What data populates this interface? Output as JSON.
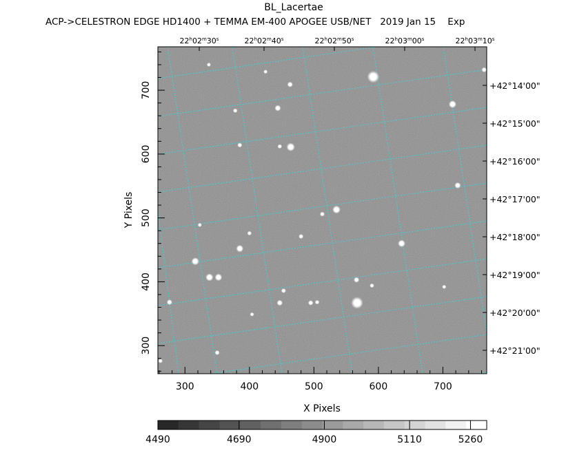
{
  "chart_data": {
    "type": "heatmap",
    "title": "BL_Lacertae",
    "subtitle": "ACP->CELESTRON EDGE HD1400 + TEMMA EM-400 APOGEE USB/NET   2019 Jan 15    Exp",
    "xlabel": "X Pixels",
    "ylabel": "Y Pixels",
    "xlim": [
      258,
      768
    ],
    "ylim": [
      256,
      768
    ],
    "x_ticks": [
      300,
      400,
      500,
      600,
      700
    ],
    "y_ticks": [
      300,
      400,
      500,
      600,
      700
    ],
    "ra_ticks": [
      {
        "h": "22",
        "m": "02",
        "s": "30"
      },
      {
        "h": "22",
        "m": "02",
        "s": "40"
      },
      {
        "h": "22",
        "m": "02",
        "s": "50"
      },
      {
        "h": "22",
        "m": "03",
        "s": "00"
      },
      {
        "h": "22",
        "m": "03",
        "s": "10"
      }
    ],
    "dec_ticks": [
      "+42°14'00\"",
      "+42°15'00\"",
      "+42°16'00\"",
      "+42°17'00\"",
      "+42°18'00\"",
      "+42°19'00\"",
      "+42°20'00\"",
      "+42°21'00\""
    ],
    "colorbar": {
      "range": [
        4490,
        5300
      ],
      "tick_labels": [
        "4490",
        "4690",
        "4900",
        "5110",
        "5260"
      ],
      "tick_values": [
        4490,
        4690,
        4900,
        5110,
        5260
      ]
    },
    "stars": [
      {
        "x": 592,
        "y": 721,
        "mag": 2.6
      },
      {
        "x": 715,
        "y": 678,
        "mag": 1.4
      },
      {
        "x": 464,
        "y": 611,
        "mag": 1.6
      },
      {
        "x": 444,
        "y": 672,
        "mag": 1.0
      },
      {
        "x": 463,
        "y": 709,
        "mag": 0.8
      },
      {
        "x": 425,
        "y": 729,
        "mag": 0.4
      },
      {
        "x": 378,
        "y": 668,
        "mag": 0.5
      },
      {
        "x": 385,
        "y": 614,
        "mag": 0.6
      },
      {
        "x": 447,
        "y": 612,
        "mag": 0.5
      },
      {
        "x": 337,
        "y": 740,
        "mag": 0.4
      },
      {
        "x": 764,
        "y": 732,
        "mag": 0.7
      },
      {
        "x": 723,
        "y": 551,
        "mag": 1.0
      },
      {
        "x": 535,
        "y": 513,
        "mag": 1.5
      },
      {
        "x": 513,
        "y": 506,
        "mag": 0.6
      },
      {
        "x": 385,
        "y": 452,
        "mag": 1.3
      },
      {
        "x": 400,
        "y": 476,
        "mag": 0.5
      },
      {
        "x": 636,
        "y": 460,
        "mag": 1.3
      },
      {
        "x": 480,
        "y": 471,
        "mag": 0.6
      },
      {
        "x": 316,
        "y": 432,
        "mag": 1.4
      },
      {
        "x": 338,
        "y": 407,
        "mag": 1.4
      },
      {
        "x": 352,
        "y": 407,
        "mag": 1.3
      },
      {
        "x": 323,
        "y": 489,
        "mag": 0.4
      },
      {
        "x": 566,
        "y": 403,
        "mag": 0.8
      },
      {
        "x": 590,
        "y": 394,
        "mag": 0.5
      },
      {
        "x": 567,
        "y": 367,
        "mag": 2.6
      },
      {
        "x": 453,
        "y": 386,
        "mag": 0.6
      },
      {
        "x": 447,
        "y": 367,
        "mag": 0.9
      },
      {
        "x": 495,
        "y": 367,
        "mag": 0.7
      },
      {
        "x": 505,
        "y": 368,
        "mag": 0.5
      },
      {
        "x": 276,
        "y": 368,
        "mag": 0.8
      },
      {
        "x": 350,
        "y": 289,
        "mag": 0.6
      },
      {
        "x": 262,
        "y": 276,
        "mag": 0.5
      },
      {
        "x": 404,
        "y": 349,
        "mag": 0.4
      },
      {
        "x": 702,
        "y": 392,
        "mag": 0.4
      }
    ],
    "grid": true,
    "grid_color": "#3fd0d4"
  }
}
